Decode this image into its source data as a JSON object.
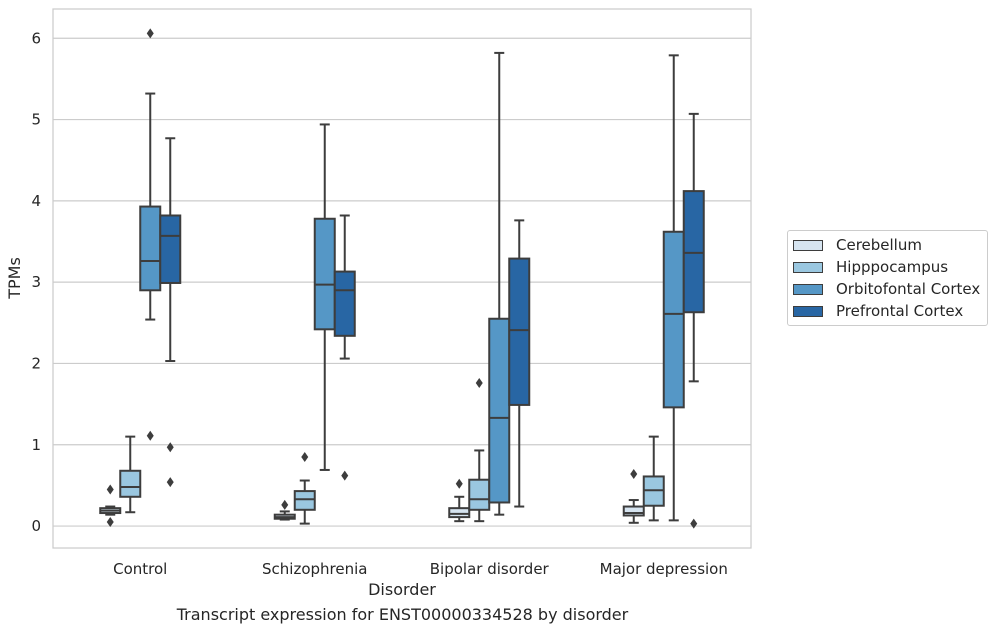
{
  "chart_data": {
    "type": "boxplot",
    "title": "Transcript expression for ENST00000334528 by disorder",
    "xlabel": "Disorder",
    "ylabel": "TPMs",
    "ylim": [
      -0.27,
      6.36
    ],
    "yticks": [
      0,
      1,
      2,
      3,
      4,
      5,
      6
    ],
    "grid": true,
    "legend_position": "right",
    "categories": [
      "Control",
      "Schizophrenia",
      "Bipolar disorder",
      "Major depression"
    ],
    "series": [
      {
        "name": "Cerebellum",
        "color": "#d6e4f0",
        "boxes": [
          {
            "whislo": 0.14,
            "q1": 0.16,
            "med": 0.19,
            "q3": 0.22,
            "whishi": 0.24,
            "fliers": [
              0.45,
              0.05
            ]
          },
          {
            "whislo": 0.08,
            "q1": 0.09,
            "med": 0.11,
            "q3": 0.14,
            "whishi": 0.18,
            "fliers": [
              0.26
            ]
          },
          {
            "whislo": 0.06,
            "q1": 0.11,
            "med": 0.15,
            "q3": 0.22,
            "whishi": 0.36,
            "fliers": [
              0.52
            ]
          },
          {
            "whislo": 0.04,
            "q1": 0.13,
            "med": 0.16,
            "q3": 0.24,
            "whishi": 0.32,
            "fliers": [
              0.64
            ]
          }
        ]
      },
      {
        "name": "Hipppocampus",
        "color": "#9ac7e0",
        "boxes": [
          {
            "whislo": 0.17,
            "q1": 0.36,
            "med": 0.48,
            "q3": 0.68,
            "whishi": 1.1,
            "fliers": []
          },
          {
            "whislo": 0.03,
            "q1": 0.2,
            "med": 0.33,
            "q3": 0.43,
            "whishi": 0.56,
            "fliers": [
              0.85
            ]
          },
          {
            "whislo": 0.06,
            "q1": 0.2,
            "med": 0.33,
            "q3": 0.57,
            "whishi": 0.93,
            "fliers": [
              1.76
            ]
          },
          {
            "whislo": 0.07,
            "q1": 0.25,
            "med": 0.44,
            "q3": 0.61,
            "whishi": 1.1,
            "fliers": []
          }
        ]
      },
      {
        "name": "Orbitofontal Cortex",
        "color": "#5597c6",
        "boxes": [
          {
            "whislo": 2.54,
            "q1": 2.9,
            "med": 3.26,
            "q3": 3.93,
            "whishi": 5.32,
            "fliers": [
              1.11,
              6.06
            ]
          },
          {
            "whislo": 0.69,
            "q1": 2.42,
            "med": 2.97,
            "q3": 3.78,
            "whishi": 4.94,
            "fliers": []
          },
          {
            "whislo": 0.14,
            "q1": 0.29,
            "med": 1.33,
            "q3": 2.55,
            "whishi": 5.82,
            "fliers": []
          },
          {
            "whislo": 0.07,
            "q1": 1.46,
            "med": 2.61,
            "q3": 3.62,
            "whishi": 5.79,
            "fliers": []
          }
        ]
      },
      {
        "name": "Prefrontal Cortex",
        "color": "#2866a4",
        "boxes": [
          {
            "whislo": 2.03,
            "q1": 2.99,
            "med": 3.57,
            "q3": 3.82,
            "whishi": 4.77,
            "fliers": [
              0.97,
              0.54
            ]
          },
          {
            "whislo": 2.06,
            "q1": 2.34,
            "med": 2.9,
            "q3": 3.13,
            "whishi": 3.82,
            "fliers": [
              0.62
            ]
          },
          {
            "whislo": 0.24,
            "q1": 1.49,
            "med": 2.41,
            "q3": 3.29,
            "whishi": 3.76,
            "fliers": []
          },
          {
            "whislo": 1.78,
            "q1": 2.63,
            "med": 3.36,
            "q3": 4.12,
            "whishi": 5.07,
            "fliers": [
              0.03
            ]
          }
        ]
      }
    ]
  }
}
